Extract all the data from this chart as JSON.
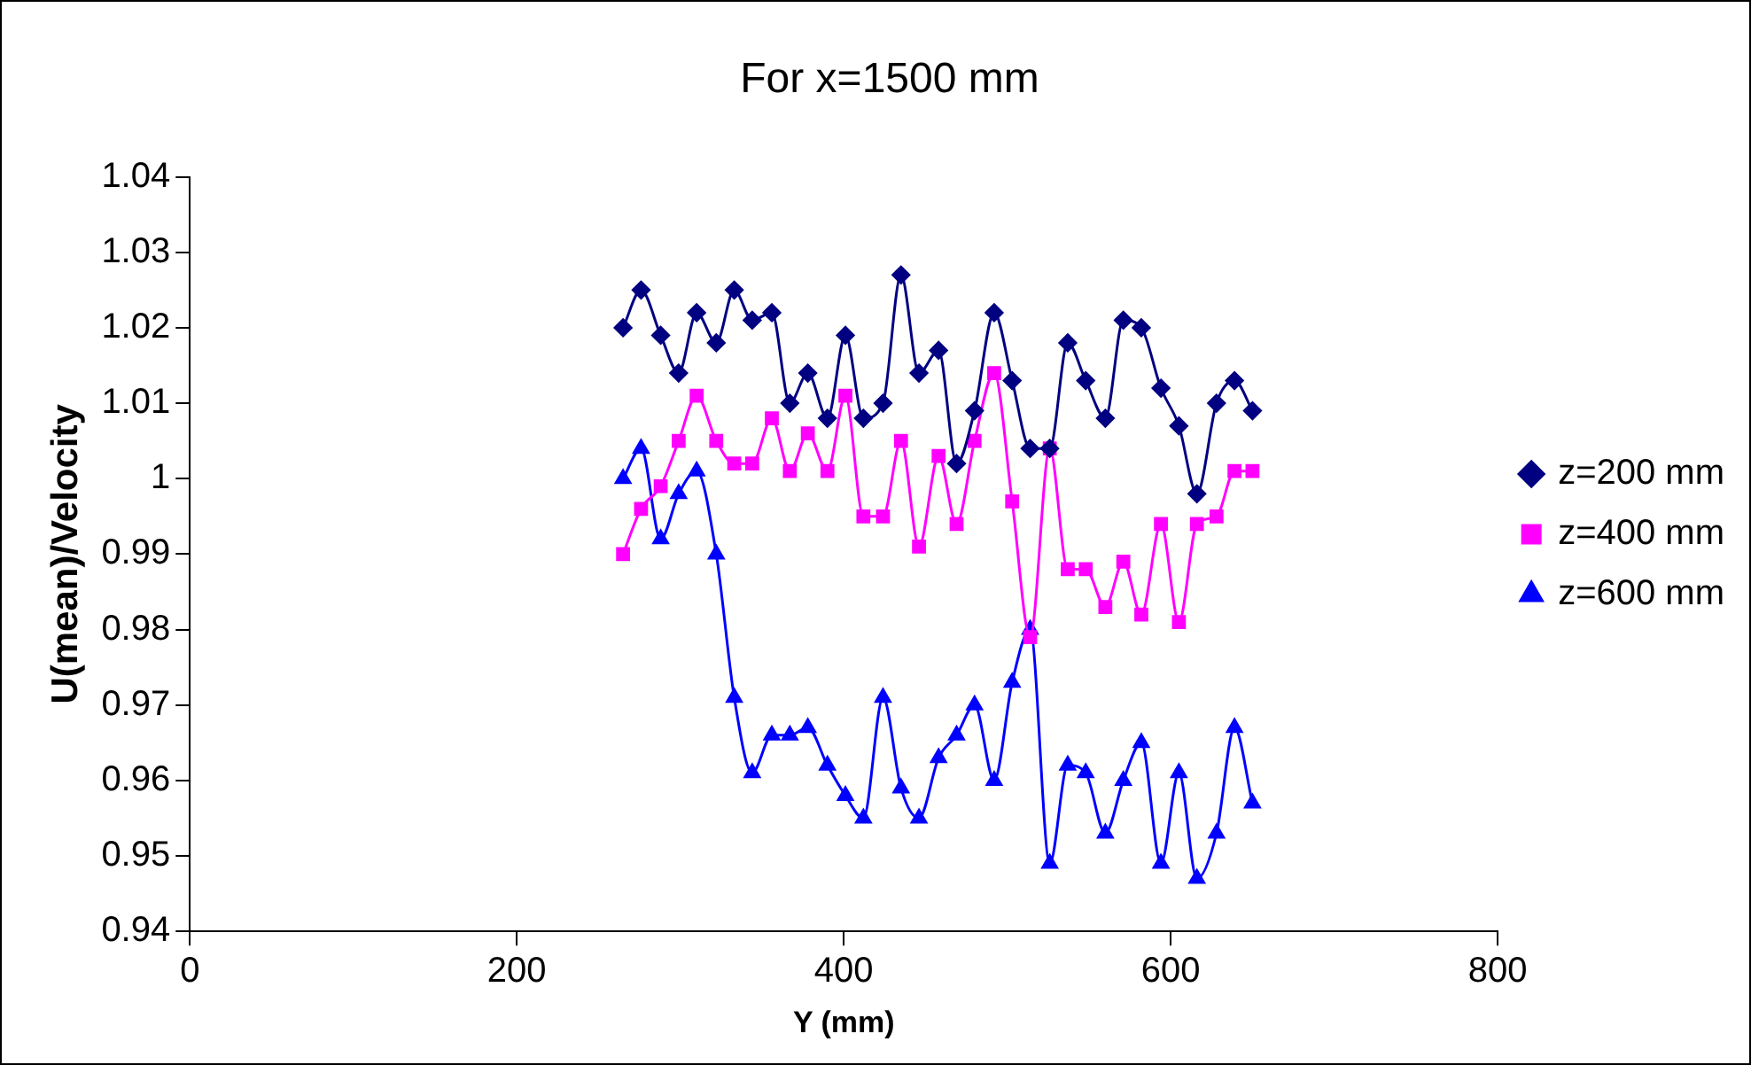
{
  "chart_data": {
    "type": "line",
    "title": "For x=1500 mm",
    "xlabel": "Y (mm)",
    "ylabel": "U(mean)/Velocity",
    "x": [
      265,
      276,
      288,
      299,
      310,
      322,
      333,
      344,
      356,
      367,
      378,
      390,
      401,
      412,
      424,
      435,
      446,
      458,
      469,
      480,
      492,
      503,
      514,
      526,
      537,
      548,
      560,
      571,
      582,
      594,
      605,
      616,
      628,
      639,
      650
    ],
    "series": [
      {
        "name": "z=200 mm",
        "color": "#000080",
        "marker": "diamond",
        "values": [
          1.02,
          1.025,
          1.019,
          1.014,
          1.022,
          1.018,
          1.025,
          1.021,
          1.022,
          1.01,
          1.014,
          1.008,
          1.019,
          1.008,
          1.01,
          1.027,
          1.014,
          1.017,
          1.002,
          1.009,
          1.022,
          1.013,
          1.004,
          1.004,
          1.018,
          1.013,
          1.008,
          1.021,
          1.02,
          1.012,
          1.007,
          0.998,
          1.01,
          1.013,
          1.009
        ]
      },
      {
        "name": "z=400 mm",
        "color": "#ff00ff",
        "marker": "square",
        "values": [
          0.99,
          0.996,
          0.999,
          1.005,
          1.011,
          1.005,
          1.002,
          1.002,
          1.008,
          1.001,
          1.006,
          1.001,
          1.011,
          0.995,
          0.995,
          1.005,
          0.991,
          1.003,
          0.994,
          1.005,
          1.014,
          0.997,
          0.979,
          1.004,
          0.988,
          0.988,
          0.983,
          0.989,
          0.982,
          0.994,
          0.981,
          0.994,
          0.995,
          1.001,
          1.001
        ]
      },
      {
        "name": "z=600 mm",
        "color": "#0000ff",
        "marker": "triangle",
        "values": [
          1.0,
          1.004,
          0.992,
          0.998,
          1.001,
          0.99,
          0.971,
          0.961,
          0.966,
          0.966,
          0.967,
          0.962,
          0.958,
          0.955,
          0.971,
          0.959,
          0.955,
          0.963,
          0.966,
          0.97,
          0.96,
          0.973,
          0.98,
          0.949,
          0.962,
          0.961,
          0.953,
          0.96,
          0.965,
          0.949,
          0.961,
          0.947,
          0.953,
          0.967,
          0.957
        ]
      }
    ],
    "xlim": [
      0,
      800
    ],
    "xticks": [
      0,
      200,
      400,
      600,
      800
    ],
    "ylim": [
      0.94,
      1.04
    ],
    "yticks": [
      0.94,
      0.95,
      0.96,
      0.97,
      0.98,
      0.99,
      1,
      1.01,
      1.02,
      1.03,
      1.04
    ],
    "grid": false,
    "legend": "right",
    "line_style": "solid"
  }
}
